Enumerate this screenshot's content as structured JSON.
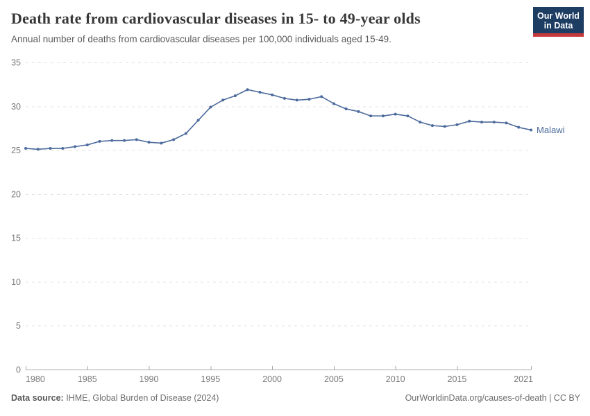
{
  "header": {
    "logo_line1": "Our World",
    "logo_line2": "in Data"
  },
  "chart_data": {
    "type": "line",
    "title": "Death rate from cardiovascular diseases in 15- to 49-year olds",
    "subtitle": "Annual number of deaths from cardiovascular diseases per 100,000 individuals aged 15-49.",
    "x": [
      1980,
      1981,
      1982,
      1983,
      1984,
      1985,
      1986,
      1987,
      1988,
      1989,
      1990,
      1991,
      1992,
      1993,
      1994,
      1995,
      1996,
      1997,
      1998,
      1999,
      2000,
      2001,
      2002,
      2003,
      2004,
      2005,
      2006,
      2007,
      2008,
      2009,
      2010,
      2011,
      2012,
      2013,
      2014,
      2015,
      2016,
      2017,
      2018,
      2019,
      2020,
      2021
    ],
    "series": [
      {
        "name": "Malawi",
        "color": "#4c6a9c",
        "values": [
          25.2,
          25.1,
          25.2,
          25.2,
          25.4,
          25.6,
          26.0,
          26.1,
          26.1,
          26.2,
          25.9,
          25.8,
          26.2,
          26.9,
          28.4,
          29.9,
          30.7,
          31.2,
          31.9,
          31.6,
          31.3,
          30.9,
          30.7,
          30.8,
          31.1,
          30.3,
          29.7,
          29.4,
          28.9,
          28.9,
          29.1,
          28.9,
          28.2,
          27.8,
          27.7,
          27.9,
          28.3,
          28.2,
          28.2,
          28.1,
          27.6,
          27.3
        ]
      }
    ],
    "xticks": [
      1980,
      1985,
      1990,
      1995,
      2000,
      2005,
      2010,
      2015,
      2021
    ],
    "yticks": [
      0,
      5,
      10,
      15,
      20,
      25,
      30,
      35
    ],
    "ylim": [
      0,
      35
    ],
    "xlabel": "",
    "ylabel": "",
    "grid": "horizontal-dashed",
    "legend": "line-end-label"
  },
  "footer": {
    "source_label": "Data source:",
    "source_text": " IHME, Global Burden of Disease (2024)",
    "attribution": "OurWorldinData.org/causes-of-death | CC BY"
  },
  "colors": {
    "line": "#4c6a9c",
    "grid": "#e3e3e3",
    "axis": "#a8a8a8",
    "tick_label": "#787878",
    "logo_bg": "#1d3d63",
    "logo_accent": "#c5383b"
  }
}
